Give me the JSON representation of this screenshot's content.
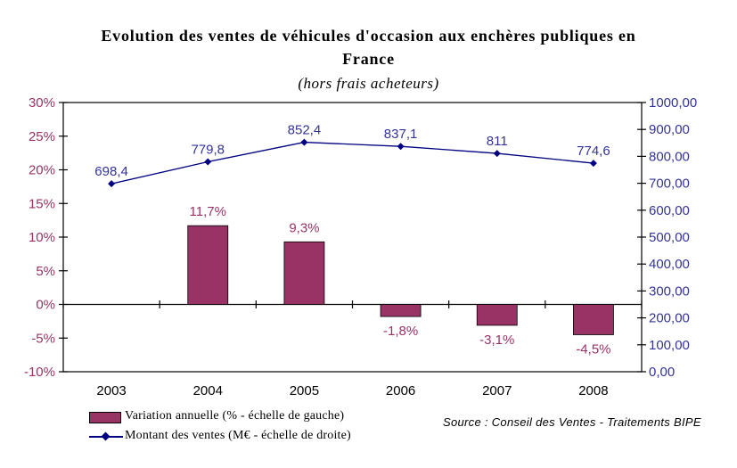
{
  "title_line1": "Evolution des ventes de véhicules d'occasion aux enchères publiques en",
  "title_line2": "France",
  "subtitle": "(hors frais acheteurs)",
  "source_note": "Source : Conseil des Ventes -  Traitements BIPE",
  "legend": {
    "bar_label": "Variation annuelle (% - échelle de gauche)",
    "line_label": "Montant des ventes (M€ - échelle de droite)"
  },
  "colors": {
    "bar_fill": "#993366",
    "bar_border": "#000000",
    "line": "#000080",
    "left_axis_labels": "#993366",
    "right_axis_labels": "#333399",
    "bar_data_labels": "#993366",
    "line_data_labels": "#333399",
    "axis_lines": "#000000",
    "x_axis_labels": "#000000"
  },
  "chart_data": {
    "type": "combo",
    "title": "Evolution des ventes de véhicules d'occasion aux enchères publiques en France",
    "subtitle": "(hors frais acheteurs)",
    "categories": [
      "2003",
      "2004",
      "2005",
      "2006",
      "2007",
      "2008"
    ],
    "series": [
      {
        "name": "Variation annuelle (% - échelle de gauche)",
        "type": "bar",
        "axis": "left",
        "values": [
          null,
          11.7,
          9.3,
          -1.8,
          -3.1,
          -4.5
        ],
        "labels": [
          "",
          "11,7%",
          "9,3%",
          "-1,8%",
          "-3,1%",
          "-4,5%"
        ]
      },
      {
        "name": "Montant des ventes (M€ - échelle de droite)",
        "type": "line",
        "axis": "right",
        "values": [
          698.4,
          779.8,
          852.4,
          837.1,
          811,
          774.6
        ],
        "labels": [
          "698,4",
          "779,8",
          "852,4",
          "837,1",
          "811",
          "774,6"
        ]
      }
    ],
    "left_axis": {
      "min": -10,
      "max": 30,
      "step": 5,
      "tick_labels": [
        "30%",
        "25%",
        "20%",
        "15%",
        "10%",
        "5%",
        "0%",
        "-5%",
        "-10%"
      ]
    },
    "right_axis": {
      "min": 0,
      "max": 1000,
      "step": 100,
      "tick_labels": [
        "1000,00",
        "900,00",
        "800,00",
        "700,00",
        "600,00",
        "500,00",
        "400,00",
        "300,00",
        "200,00",
        "100,00",
        "0,00"
      ]
    },
    "grid": false,
    "legend_position": "bottom-left"
  }
}
